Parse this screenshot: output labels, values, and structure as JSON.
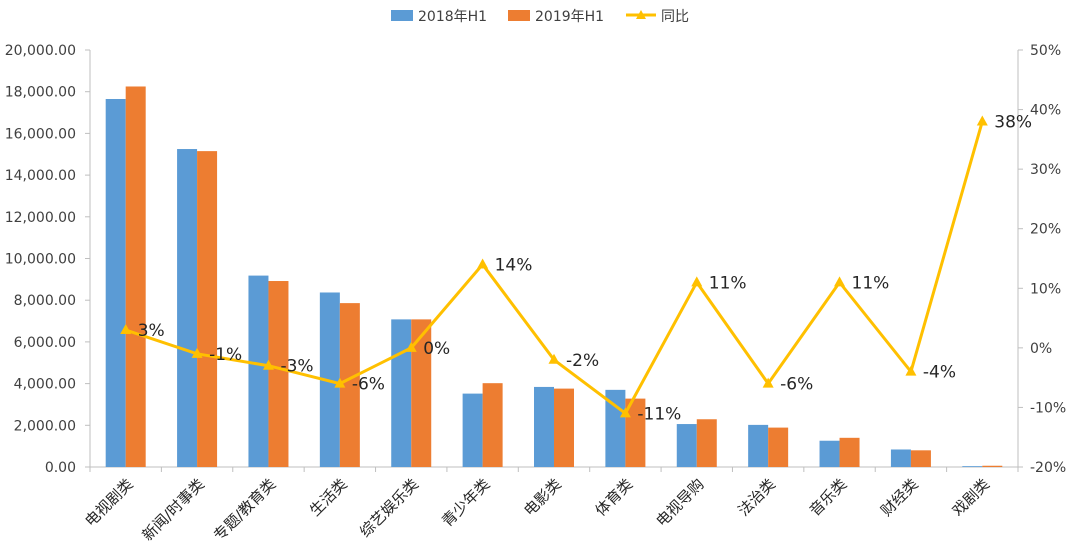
{
  "chart_data": {
    "type": "bar",
    "categories": [
      "电视剧类",
      "新闻/时事类",
      "专题/教育类",
      "生活类",
      "综艺娱乐类",
      "青少年类",
      "电影类",
      "体育类",
      "电视导购",
      "法治类",
      "音乐类",
      "财经类",
      "戏剧类"
    ],
    "series": [
      {
        "name": "2018年H1",
        "type": "bar",
        "axis": "left",
        "color": "#5B9BD5",
        "values": [
          17650,
          15250,
          9180,
          8370,
          7080,
          3520,
          3840,
          3700,
          2060,
          2020,
          1260,
          840,
          40
        ]
      },
      {
        "name": "2019年H1",
        "type": "bar",
        "axis": "left",
        "color": "#ED7D31",
        "values": [
          18250,
          15150,
          8920,
          7860,
          7080,
          4020,
          3760,
          3280,
          2290,
          1890,
          1400,
          800,
          60
        ]
      },
      {
        "name": "同比",
        "type": "line",
        "axis": "right",
        "color": "#FFC000",
        "values": [
          3,
          -1,
          -3,
          -6,
          0,
          14,
          -2,
          -11,
          11,
          -6,
          11,
          -4,
          38
        ],
        "labels": [
          "3%",
          "-1%",
          "-3%",
          "-6%",
          "0%",
          "14%",
          "-2%",
          "-11%",
          "11%",
          "-6%",
          "11%",
          "-4%",
          "38%"
        ]
      }
    ],
    "ylim": [
      0,
      20000
    ],
    "yticks": [
      "0.00",
      "2,000.00",
      "4,000.00",
      "6,000.00",
      "8,000.00",
      "10,000.00",
      "12,000.00",
      "14,000.00",
      "16,000.00",
      "18,000.00",
      "20,000.00"
    ],
    "y2lim": [
      -20,
      50
    ],
    "y2ticks": [
      "-20%",
      "-10%",
      "0%",
      "10%",
      "20%",
      "30%",
      "40%",
      "50%"
    ],
    "legend": "top",
    "title": "",
    "xlabel": "",
    "ylabel": ""
  }
}
